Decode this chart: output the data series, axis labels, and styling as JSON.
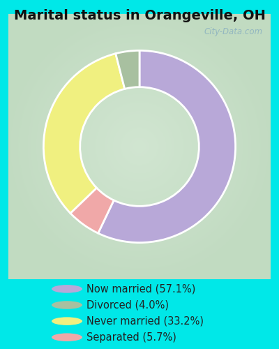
{
  "title": "Marital status in Orangeville, OH",
  "categories": [
    "Now married",
    "Separated",
    "Never married",
    "Divorced"
  ],
  "values": [
    57.1,
    5.7,
    33.2,
    4.0
  ],
  "colors": [
    "#b8a8d8",
    "#f0a8a8",
    "#f0f080",
    "#a8c0a0"
  ],
  "legend_labels": [
    "Now married (57.1%)",
    "Divorced (4.0%)",
    "Never married (33.2%)",
    "Separated (5.7%)"
  ],
  "legend_colors": [
    "#b8a8d8",
    "#a8c0a0",
    "#f0f080",
    "#f0a8a8"
  ],
  "bg_outer": "#00e8e8",
  "title_fontsize": 14,
  "watermark": "City-Data.com",
  "start_angle": 90,
  "donut_width": 0.38
}
